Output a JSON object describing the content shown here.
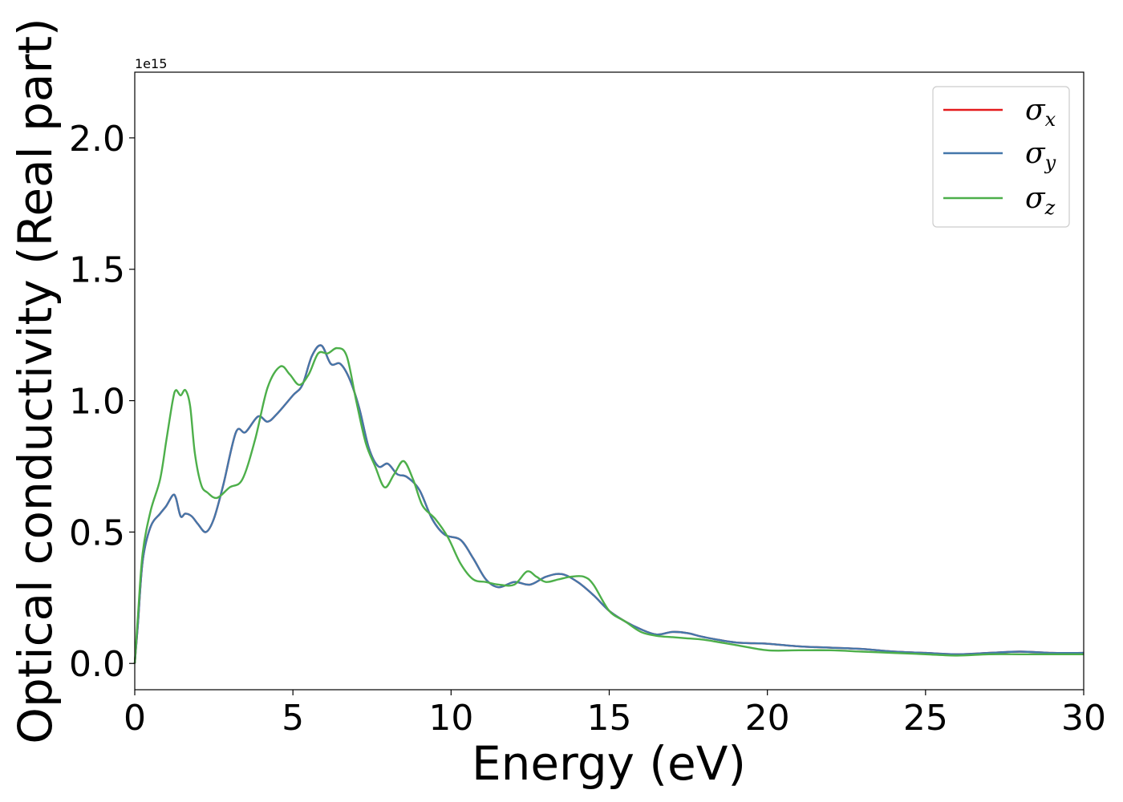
{
  "chart_data": {
    "type": "line",
    "title": "",
    "xlabel": "Energy (eV)",
    "ylabel": "Optical conductivity (Real part)",
    "y_offset_label": "1e15",
    "xlim": [
      0,
      30
    ],
    "ylim": [
      -0.1,
      2.25
    ],
    "x_ticks": [
      0,
      5,
      10,
      15,
      20,
      25,
      30
    ],
    "x_tick_labels": [
      "0",
      "5",
      "10",
      "15",
      "20",
      "25",
      "30"
    ],
    "y_ticks": [
      0.0,
      0.5,
      1.0,
      1.5,
      2.0
    ],
    "y_tick_labels": [
      "0.0",
      "0.5",
      "1.0",
      "1.5",
      "2.0"
    ],
    "grid": false,
    "legend_position": "top-right",
    "series": [
      {
        "name": "σx",
        "legend_symbol": "σ",
        "legend_sub": "x",
        "color": "#e41a1c",
        "x": [
          0,
          0.1,
          0.25,
          0.5,
          0.8,
          1.0,
          1.2,
          1.3,
          1.45,
          1.6,
          1.8,
          2.0,
          2.25,
          2.5,
          2.8,
          3.2,
          3.5,
          3.9,
          4.2,
          4.5,
          5.0,
          5.3,
          5.6,
          5.9,
          6.2,
          6.5,
          6.8,
          7.1,
          7.4,
          7.7,
          8.0,
          8.3,
          8.6,
          9.0,
          9.4,
          9.8,
          10.3,
          10.7,
          11.1,
          11.5,
          12.0,
          12.5,
          13.0,
          13.5,
          14.0,
          14.5,
          15.0,
          15.5,
          16.0,
          16.5,
          17.0,
          17.5,
          18.0,
          19.0,
          20.0,
          21.0,
          22.0,
          23.0,
          24.0,
          25.0,
          26.0,
          27.0,
          28.0,
          29.0,
          30.0
        ],
        "y": [
          0.0,
          0.15,
          0.39,
          0.52,
          0.57,
          0.6,
          0.64,
          0.63,
          0.56,
          0.57,
          0.56,
          0.53,
          0.5,
          0.55,
          0.68,
          0.88,
          0.88,
          0.94,
          0.92,
          0.95,
          1.02,
          1.06,
          1.17,
          1.21,
          1.14,
          1.14,
          1.08,
          0.97,
          0.82,
          0.75,
          0.76,
          0.72,
          0.71,
          0.66,
          0.55,
          0.49,
          0.47,
          0.4,
          0.32,
          0.29,
          0.31,
          0.3,
          0.33,
          0.34,
          0.31,
          0.26,
          0.2,
          0.16,
          0.13,
          0.11,
          0.12,
          0.115,
          0.1,
          0.08,
          0.075,
          0.065,
          0.06,
          0.055,
          0.045,
          0.04,
          0.035,
          0.04,
          0.045,
          0.04,
          0.04
        ]
      },
      {
        "name": "σy",
        "legend_symbol": "σ",
        "legend_sub": "y",
        "color": "#4477aa",
        "x": [
          0,
          0.1,
          0.25,
          0.5,
          0.8,
          1.0,
          1.2,
          1.3,
          1.45,
          1.6,
          1.8,
          2.0,
          2.25,
          2.5,
          2.8,
          3.2,
          3.5,
          3.9,
          4.2,
          4.5,
          5.0,
          5.3,
          5.6,
          5.9,
          6.2,
          6.5,
          6.8,
          7.1,
          7.4,
          7.7,
          8.0,
          8.3,
          8.6,
          9.0,
          9.4,
          9.8,
          10.3,
          10.7,
          11.1,
          11.5,
          12.0,
          12.5,
          13.0,
          13.5,
          14.0,
          14.5,
          15.0,
          15.5,
          16.0,
          16.5,
          17.0,
          17.5,
          18.0,
          19.0,
          20.0,
          21.0,
          22.0,
          23.0,
          24.0,
          25.0,
          26.0,
          27.0,
          28.0,
          29.0,
          30.0
        ],
        "y": [
          0.0,
          0.15,
          0.39,
          0.52,
          0.57,
          0.6,
          0.64,
          0.63,
          0.56,
          0.57,
          0.56,
          0.53,
          0.5,
          0.55,
          0.68,
          0.88,
          0.88,
          0.94,
          0.92,
          0.95,
          1.02,
          1.06,
          1.17,
          1.21,
          1.14,
          1.14,
          1.08,
          0.97,
          0.82,
          0.75,
          0.76,
          0.72,
          0.71,
          0.66,
          0.55,
          0.49,
          0.47,
          0.4,
          0.32,
          0.29,
          0.31,
          0.3,
          0.33,
          0.34,
          0.31,
          0.26,
          0.2,
          0.16,
          0.13,
          0.11,
          0.12,
          0.115,
          0.1,
          0.08,
          0.075,
          0.065,
          0.06,
          0.055,
          0.045,
          0.04,
          0.035,
          0.04,
          0.045,
          0.04,
          0.04
        ]
      },
      {
        "name": "σz",
        "legend_symbol": "σ",
        "legend_sub": "z",
        "color": "#4daf4a",
        "x": [
          0,
          0.1,
          0.25,
          0.5,
          0.8,
          1.0,
          1.2,
          1.3,
          1.45,
          1.6,
          1.75,
          1.9,
          2.1,
          2.3,
          2.6,
          3.0,
          3.4,
          3.8,
          4.2,
          4.6,
          4.9,
          5.2,
          5.5,
          5.8,
          6.1,
          6.4,
          6.7,
          7.0,
          7.3,
          7.6,
          7.9,
          8.2,
          8.5,
          8.8,
          9.1,
          9.5,
          9.9,
          10.3,
          10.7,
          11.1,
          11.5,
          12.0,
          12.4,
          12.7,
          13.0,
          13.4,
          13.8,
          14.2,
          14.5,
          15.0,
          15.5,
          16.0,
          16.5,
          17.0,
          17.5,
          18.0,
          19.0,
          20.0,
          21.0,
          22.0,
          23.0,
          24.0,
          25.0,
          26.0,
          27.0,
          28.0,
          29.0,
          30.0
        ],
        "y": [
          0.0,
          0.18,
          0.42,
          0.58,
          0.7,
          0.85,
          1.0,
          1.04,
          1.02,
          1.04,
          0.98,
          0.8,
          0.68,
          0.65,
          0.63,
          0.67,
          0.7,
          0.85,
          1.05,
          1.13,
          1.1,
          1.06,
          1.1,
          1.18,
          1.18,
          1.2,
          1.17,
          1.0,
          0.84,
          0.75,
          0.67,
          0.72,
          0.77,
          0.7,
          0.6,
          0.55,
          0.48,
          0.38,
          0.32,
          0.31,
          0.3,
          0.3,
          0.35,
          0.33,
          0.31,
          0.32,
          0.33,
          0.33,
          0.3,
          0.2,
          0.16,
          0.12,
          0.105,
          0.1,
          0.095,
          0.09,
          0.07,
          0.05,
          0.05,
          0.05,
          0.045,
          0.04,
          0.035,
          0.03,
          0.035,
          0.035,
          0.035,
          0.035
        ]
      }
    ]
  }
}
